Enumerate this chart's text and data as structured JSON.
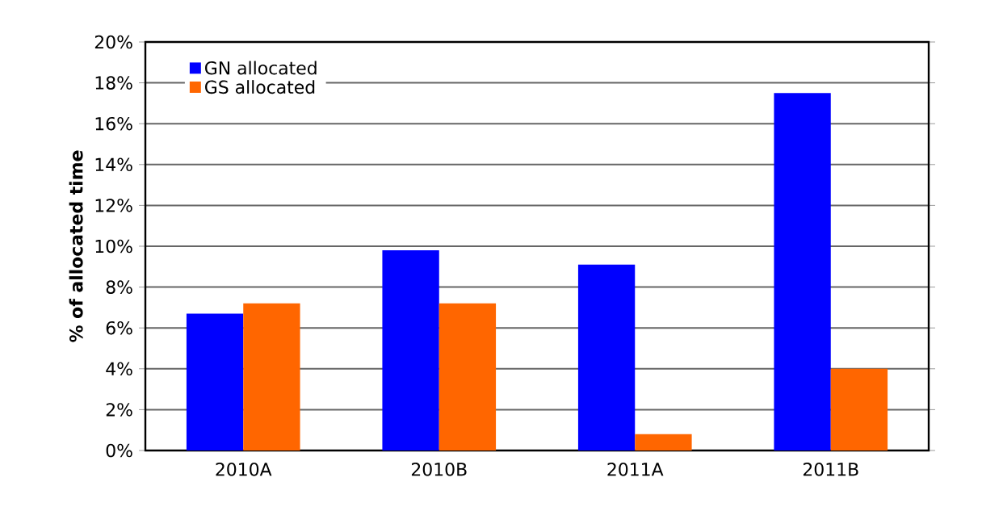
{
  "chart_data": {
    "type": "bar",
    "ylabel": "% of allocated time",
    "categories": [
      "2010A",
      "2010B",
      "2011A",
      "2011B"
    ],
    "series": [
      {
        "name": "GN allocated",
        "color": "#0000ff",
        "values": [
          6.7,
          9.8,
          9.1,
          17.5
        ]
      },
      {
        "name": "GS allocated",
        "color": "#ff6600",
        "values": [
          7.2,
          7.2,
          0.8,
          4.0
        ]
      }
    ],
    "ylim": [
      0,
      20
    ],
    "yticks": [
      {
        "value": 0,
        "label": "0%"
      },
      {
        "value": 2,
        "label": "2%"
      },
      {
        "value": 4,
        "label": "4%"
      },
      {
        "value": 6,
        "label": "6%"
      },
      {
        "value": 8,
        "label": "8%"
      },
      {
        "value": 10,
        "label": "10%"
      },
      {
        "value": 12,
        "label": "12%"
      },
      {
        "value": 14,
        "label": "14%"
      },
      {
        "value": 16,
        "label": "16%"
      },
      {
        "value": 18,
        "label": "18%"
      },
      {
        "value": 20,
        "label": "20%"
      }
    ],
    "grid": "y",
    "legend": "top left"
  }
}
